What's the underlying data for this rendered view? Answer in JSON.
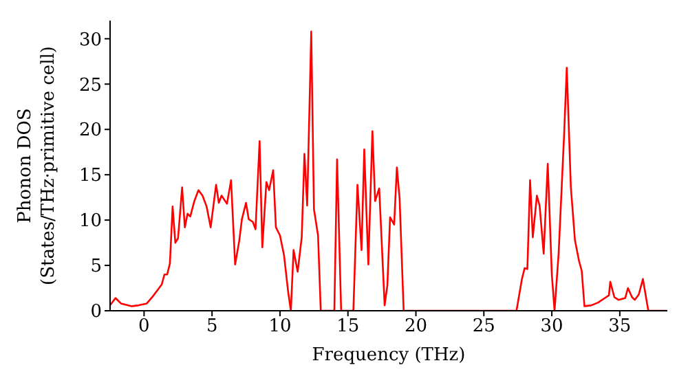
{
  "chart_data": {
    "type": "line",
    "xlabel": "Frequency (THz)",
    "ylabel": "Phonon DOS\n(States/THz·primitive cell)",
    "x": [
      -2.5,
      -2.1,
      -1.7,
      -0.9,
      -0.4,
      0.2,
      0.6,
      1.0,
      1.3,
      1.5,
      1.7,
      1.9,
      2.1,
      2.3,
      2.5,
      2.8,
      3.0,
      3.2,
      3.4,
      3.7,
      4.0,
      4.3,
      4.6,
      4.9,
      5.3,
      5.5,
      5.7,
      6.1,
      6.4,
      6.7,
      7.0,
      7.2,
      7.5,
      7.7,
      8.0,
      8.2,
      8.5,
      8.7,
      9.0,
      9.2,
      9.5,
      9.7,
      10.0,
      10.3,
      10.6,
      10.8,
      11.0,
      11.3,
      11.6,
      11.8,
      12.0,
      12.3,
      12.5,
      12.8,
      13.0,
      14.0,
      14.2,
      14.5,
      15.4,
      15.7,
      16.0,
      16.2,
      16.5,
      16.8,
      17.0,
      17.3,
      17.7,
      17.9,
      18.1,
      18.4,
      18.6,
      18.8,
      19.1,
      27.4,
      27.8,
      28.0,
      28.2,
      28.4,
      28.6,
      28.9,
      29.1,
      29.4,
      29.7,
      30.0,
      30.2,
      30.5,
      30.9,
      31.1,
      31.4,
      31.7,
      32.0,
      32.2,
      32.4,
      32.9,
      33.4,
      33.9,
      34.2,
      34.3,
      34.6,
      34.9,
      35.4,
      35.6,
      35.9,
      36.1,
      36.4,
      36.7,
      37.1,
      38.5
    ],
    "series": [
      {
        "color": "#ff0000",
        "values": [
          0.6,
          1.4,
          0.8,
          0.5,
          0.6,
          0.8,
          1.5,
          2.3,
          2.9,
          4.0,
          4.0,
          5.2,
          11.5,
          7.5,
          8.0,
          13.6,
          9.2,
          10.7,
          10.4,
          12.1,
          13.3,
          12.7,
          11.5,
          9.2,
          13.9,
          11.9,
          12.7,
          11.8,
          14.4,
          5.1,
          7.7,
          10.1,
          11.9,
          10.1,
          9.8,
          9.0,
          18.7,
          7.0,
          14.2,
          13.3,
          15.5,
          9.2,
          8.3,
          6.1,
          2.1,
          0,
          6.7,
          4.3,
          8.1,
          17.3,
          11.6,
          30.8,
          11.2,
          8.3,
          0,
          0,
          16.7,
          0,
          0,
          13.9,
          6.7,
          17.8,
          5.1,
          19.8,
          12.1,
          13.5,
          0.6,
          2.8,
          10.3,
          9.5,
          15.8,
          12.4,
          0,
          0,
          3.5,
          4.7,
          4.6,
          14.4,
          8.1,
          12.7,
          11.6,
          6.3,
          16.2,
          4.0,
          0,
          6.3,
          19.3,
          26.8,
          13.6,
          7.8,
          5.5,
          4.4,
          0.5,
          0.6,
          0.9,
          1.4,
          1.7,
          3.2,
          1.5,
          1.2,
          1.4,
          2.5,
          1.5,
          1.2,
          1.8,
          3.5,
          0,
          0
        ]
      }
    ],
    "xlim": [
      -2.5,
      38.5
    ],
    "xticks": [
      0,
      5,
      10,
      15,
      20,
      25,
      30,
      35
    ],
    "ylim": [
      0,
      32
    ],
    "yticks": [
      0,
      5,
      10,
      15,
      20,
      25,
      30
    ],
    "grid": false,
    "legend": false,
    "marker": "none",
    "line_style": "solid"
  }
}
